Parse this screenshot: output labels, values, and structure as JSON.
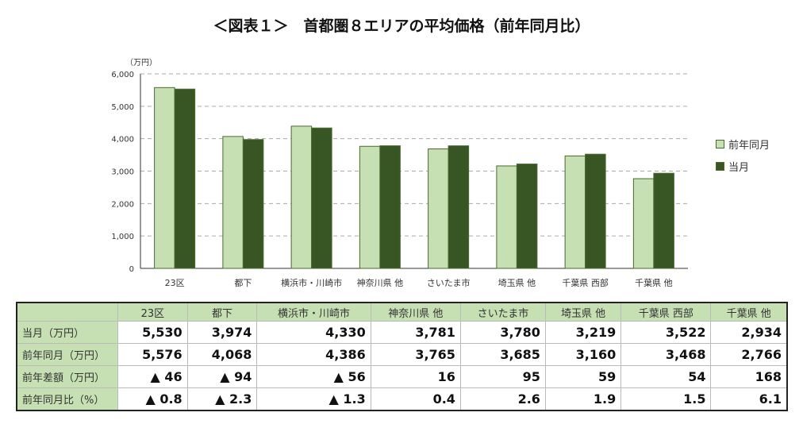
{
  "title": "＜図表１＞　首都圏８エリアの平均価格（前年同月比）",
  "chart_data": {
    "type": "bar",
    "title": "＜図表１＞　首都圏８エリアの平均価格（前年同月比）",
    "ylabel": "（万円）",
    "ylim": [
      0,
      6000
    ],
    "yticks": [
      "0",
      "1,000",
      "2,000",
      "3,000",
      "4,000",
      "5,000",
      "6,000"
    ],
    "grid": true,
    "legend_position": "right",
    "categories": [
      "23区",
      "都下",
      "横浜市・川崎市",
      "神奈川県 他",
      "さいたま市",
      "埼玉県 他",
      "千葉県 西部",
      "千葉県 他"
    ],
    "series": [
      {
        "name": "前年同月",
        "color": "#c6e0b4",
        "values": [
          5576,
          4068,
          4386,
          3765,
          3685,
          3160,
          3468,
          2766
        ]
      },
      {
        "name": "当月",
        "color": "#375623",
        "values": [
          5530,
          3974,
          4330,
          3781,
          3780,
          3219,
          3522,
          2934
        ]
      }
    ]
  },
  "table": {
    "headers": [
      "23区",
      "都下",
      "横浜市・川崎市",
      "神奈川県 他",
      "さいたま市",
      "埼玉県 他",
      "千葉県 西部",
      "千葉県 他"
    ],
    "rows": [
      {
        "label": "当月（万円）",
        "cells": [
          "5,530",
          "3,974",
          "4,330",
          "3,781",
          "3,780",
          "3,219",
          "3,522",
          "2,934"
        ]
      },
      {
        "label": "前年同月（万円）",
        "cells": [
          "5,576",
          "4,068",
          "4,386",
          "3,765",
          "3,685",
          "3,160",
          "3,468",
          "2,766"
        ]
      },
      {
        "label": "前年差額（万円）",
        "cells": [
          "▲ 46",
          "▲ 94",
          "▲ 56",
          "16",
          "95",
          "59",
          "54",
          "168"
        ]
      },
      {
        "label": "前年同月比（%）",
        "cells": [
          "▲ 0.8",
          "▲ 2.3",
          "▲ 1.3",
          "0.4",
          "2.6",
          "1.9",
          "1.5",
          "6.1"
        ]
      }
    ]
  }
}
